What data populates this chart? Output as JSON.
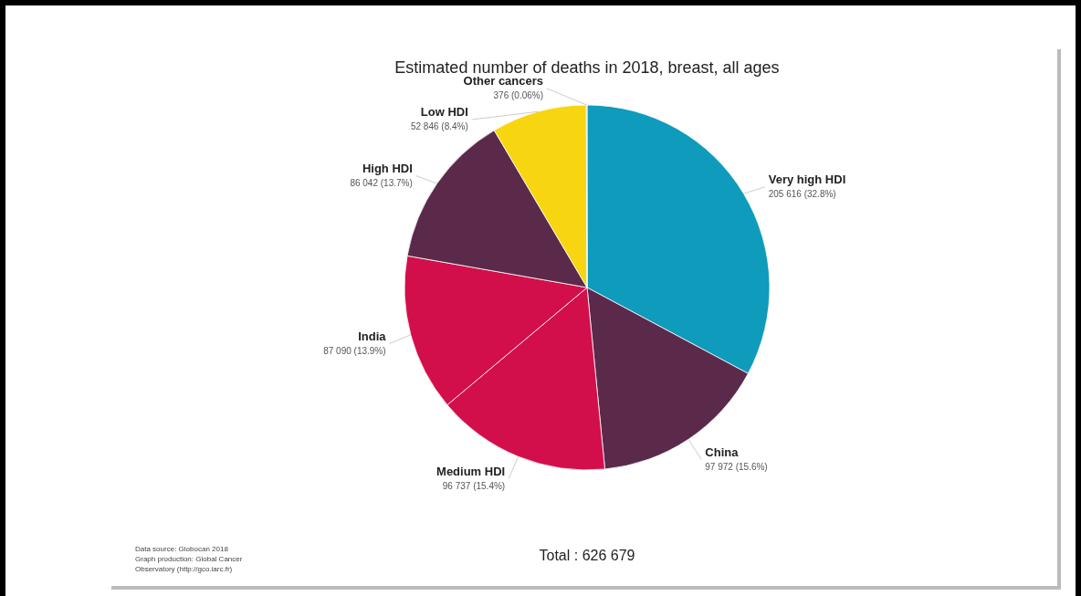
{
  "chart_data": {
    "type": "pie",
    "title": "Estimated number of deaths in 2018, breast, all ages",
    "categories": [
      "Very high HDI",
      "China",
      "Medium HDI",
      "India",
      "High HDI",
      "Low HDI",
      "Other cancers"
    ],
    "values": [
      205616,
      97972,
      96737,
      87090,
      86042,
      52846,
      376
    ],
    "value_labels": [
      "205 616 (32.8%)",
      "97 972 (15.6%)",
      "96 737 (15.4%)",
      "87 090 (13.9%)",
      "86 042 (13.7%)",
      "52 846 (8.4%)",
      "376 (0.06%)"
    ],
    "colors": [
      "#0f9bbb",
      "#5b2a4b",
      "#d20f4b",
      "#d20f4b",
      "#5b2a4b",
      "#f7d611",
      "#9e9e9e"
    ],
    "annotations": [
      "Total : 626 679",
      "Data source: Globocan 2018",
      "Graph production: Global Cancer",
      "Observatory (http://gco.iarc.fr)"
    ]
  }
}
